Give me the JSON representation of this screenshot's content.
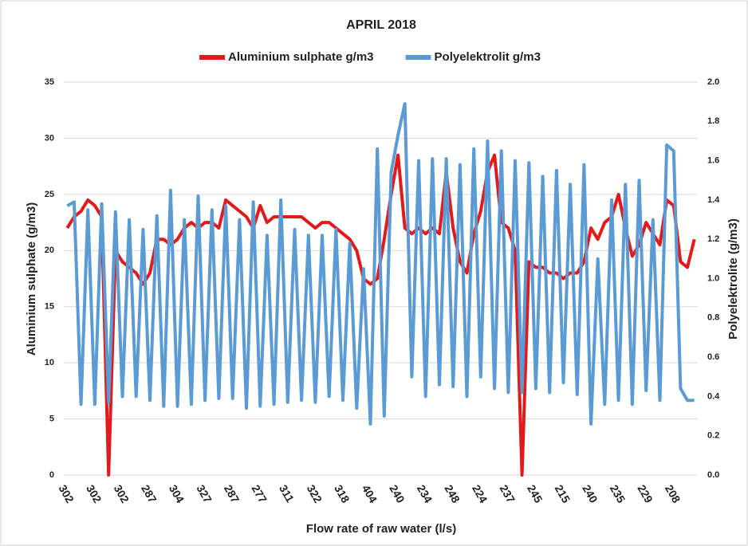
{
  "chart_data": {
    "type": "line",
    "title": "APRIL 2018",
    "x_label": "Flow rate of raw water (l/s)",
    "y_label": "Aluminium sulphate (g/m3)",
    "y2_label": "Polyelektrolite (g/m3)",
    "categories": [
      "302",
      null,
      null,
      null,
      "302",
      null,
      null,
      null,
      "302",
      null,
      null,
      null,
      "287",
      null,
      null,
      null,
      "304",
      null,
      null,
      null,
      "327",
      null,
      null,
      null,
      "287",
      null,
      null,
      null,
      "277",
      null,
      null,
      null,
      "311",
      null,
      null,
      null,
      "322",
      null,
      null,
      null,
      "318",
      null,
      null,
      null,
      "404",
      null,
      null,
      null,
      "240",
      null,
      null,
      null,
      "234",
      null,
      null,
      null,
      "248",
      null,
      null,
      null,
      "224",
      null,
      null,
      null,
      "237",
      null,
      null,
      null,
      "245",
      null,
      null,
      null,
      "215",
      null,
      null,
      null,
      "240",
      null,
      null,
      null,
      "235",
      null,
      null,
      null,
      "229",
      null,
      null,
      null,
      "208",
      null,
      null,
      null
    ],
    "ylim": [
      0,
      35
    ],
    "yticks": [
      0,
      5,
      10,
      15,
      20,
      25,
      30,
      35
    ],
    "y2lim": [
      0,
      2
    ],
    "y2ticks": [
      {
        "value": 0,
        "label": "0.0"
      },
      0.2,
      0.4,
      0.6,
      0.8,
      {
        "value": 1,
        "label": "1.0"
      },
      1.2,
      1.4,
      1.6,
      1.8,
      {
        "value": 2,
        "label": "2.0"
      }
    ],
    "grid": true,
    "legend": "top",
    "series": [
      {
        "name": "Aluminium sulphate g/m3",
        "color": "#e31a1c",
        "values": [
          22,
          23,
          23.5,
          24.5,
          24,
          23,
          0,
          20,
          19,
          18.5,
          18,
          17,
          18,
          21,
          21,
          20.5,
          21,
          22,
          22.5,
          22,
          22.5,
          22.5,
          22,
          24.5,
          24,
          23.5,
          23,
          22,
          24,
          22.5,
          23,
          23,
          23,
          23,
          23,
          22.5,
          22,
          22.5,
          22.5,
          22,
          21.5,
          21,
          20,
          17.5,
          17,
          17.5,
          21,
          25,
          28.5,
          22,
          21.5,
          22,
          21.5,
          22,
          21.5,
          27,
          22,
          19,
          18,
          21.5,
          23.5,
          27,
          28.5,
          22.5,
          22,
          20,
          0,
          19,
          18.5,
          18.5,
          18,
          18,
          17.5,
          18,
          18,
          19,
          22,
          21,
          22.5,
          23,
          25,
          22,
          19.5,
          20.5,
          22.5,
          21.5,
          20.5,
          24.5,
          24,
          19,
          18.5,
          21
        ]
      },
      {
        "name": "Polyelektrolit g/m3",
        "color": "#5b9bd5",
        "axis": "y2",
        "values": [
          1.37,
          1.39,
          0.36,
          1.35,
          0.36,
          1.38,
          0.37,
          1.34,
          0.4,
          1.3,
          0.4,
          1.25,
          0.38,
          1.32,
          0.35,
          1.45,
          0.35,
          1.3,
          0.36,
          1.42,
          0.38,
          1.35,
          0.39,
          1.37,
          0.39,
          1.3,
          0.34,
          1.39,
          0.35,
          1.22,
          0.36,
          1.4,
          0.37,
          1.25,
          0.38,
          1.22,
          0.37,
          1.22,
          0.4,
          1.25,
          0.38,
          1.18,
          0.34,
          1.05,
          0.26,
          1.66,
          0.3,
          1.54,
          1.73,
          1.89,
          0.5,
          1.6,
          0.4,
          1.61,
          0.46,
          1.61,
          0.45,
          1.58,
          0.4,
          1.66,
          0.5,
          1.7,
          0.44,
          1.65,
          0.42,
          1.6,
          0.42,
          1.59,
          0.44,
          1.52,
          0.42,
          1.55,
          0.47,
          1.48,
          0.41,
          1.58,
          0.26,
          1.1,
          0.36,
          1.4,
          0.38,
          1.48,
          0.36,
          1.5,
          0.43,
          1.3,
          0.38,
          1.68,
          1.65,
          0.44,
          0.38,
          0.38
        ]
      }
    ]
  }
}
